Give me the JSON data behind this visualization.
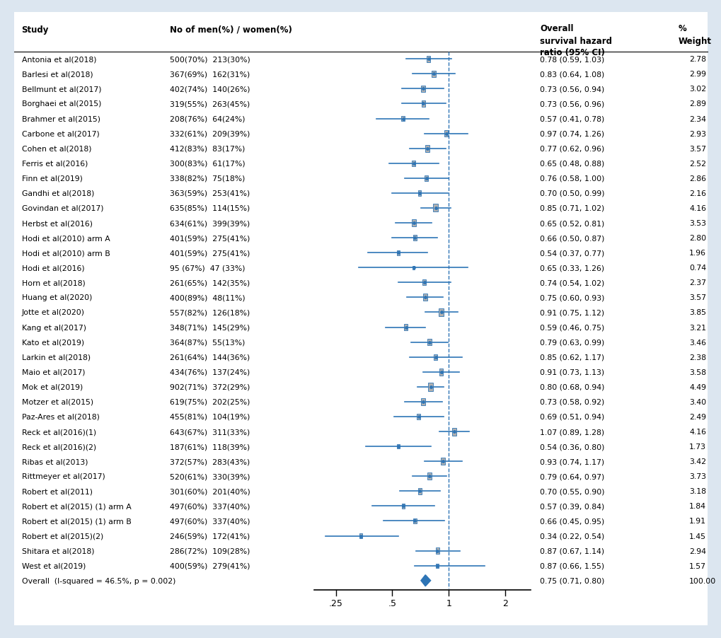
{
  "studies": [
    {
      "name": "Antonia et al(2018)",
      "men": "500(70%)",
      "women": "213(30%)",
      "hr": 0.78,
      "lo": 0.59,
      "hi": 1.03,
      "weight": 2.78
    },
    {
      "name": "Barlesi et al(2018)",
      "men": "367(69%)",
      "women": "162(31%)",
      "hr": 0.83,
      "lo": 0.64,
      "hi": 1.08,
      "weight": 2.99
    },
    {
      "name": "Bellmunt et al(2017)",
      "men": "402(74%)",
      "women": "140(26%)",
      "hr": 0.73,
      "lo": 0.56,
      "hi": 0.94,
      "weight": 3.02
    },
    {
      "name": "Borghaei et al(2015)",
      "men": "319(55%)",
      "women": "263(45%)",
      "hr": 0.73,
      "lo": 0.56,
      "hi": 0.96,
      "weight": 2.89
    },
    {
      "name": "Brahmer et al(2015)",
      "men": "208(76%)",
      "women": "64(24%)",
      "hr": 0.57,
      "lo": 0.41,
      "hi": 0.78,
      "weight": 2.34
    },
    {
      "name": "Carbone et al(2017)",
      "men": "332(61%)",
      "women": "209(39%)",
      "hr": 0.97,
      "lo": 0.74,
      "hi": 1.26,
      "weight": 2.93
    },
    {
      "name": "Cohen et al(2018)",
      "men": "412(83%)",
      "women": "83(17%)",
      "hr": 0.77,
      "lo": 0.62,
      "hi": 0.96,
      "weight": 3.57
    },
    {
      "name": "Ferris et al(2016)",
      "men": "300(83%)",
      "women": "61(17%)",
      "hr": 0.65,
      "lo": 0.48,
      "hi": 0.88,
      "weight": 2.52
    },
    {
      "name": "Finn et al(2019)",
      "men": "338(82%)",
      "women": "75(18%)",
      "hr": 0.76,
      "lo": 0.58,
      "hi": 1.0,
      "weight": 2.86
    },
    {
      "name": "Gandhi et al(2018)",
      "men": "363(59%)",
      "women": "253(41%)",
      "hr": 0.7,
      "lo": 0.5,
      "hi": 0.99,
      "weight": 2.16
    },
    {
      "name": "Govindan et al(2017)",
      "men": "635(85%)",
      "women": "114(15%)",
      "hr": 0.85,
      "lo": 0.71,
      "hi": 1.02,
      "weight": 4.16
    },
    {
      "name": "Herbst et al(2016)",
      "men": "634(61%)",
      "women": "399(39%)",
      "hr": 0.65,
      "lo": 0.52,
      "hi": 0.81,
      "weight": 3.53
    },
    {
      "name": "Hodi et al(2010) arm A",
      "men": "401(59%)",
      "women": "275(41%)",
      "hr": 0.66,
      "lo": 0.5,
      "hi": 0.87,
      "weight": 2.8
    },
    {
      "name": "Hodi et al(2010) arm B",
      "men": "401(59%)",
      "women": "275(41%)",
      "hr": 0.54,
      "lo": 0.37,
      "hi": 0.77,
      "weight": 1.96
    },
    {
      "name": "Hodi et al(2016)",
      "men": "95 (67%)",
      "women": "47 (33%)",
      "hr": 0.65,
      "lo": 0.33,
      "hi": 1.26,
      "weight": 0.74
    },
    {
      "name": "Horn et al(2018)",
      "men": "261(65%)",
      "women": "142(35%)",
      "hr": 0.74,
      "lo": 0.54,
      "hi": 1.02,
      "weight": 2.37
    },
    {
      "name": "Huang et al(2020)",
      "men": "400(89%)",
      "women": "48(11%)",
      "hr": 0.75,
      "lo": 0.6,
      "hi": 0.93,
      "weight": 3.57
    },
    {
      "name": "Jotte et al(2020)",
      "men": "557(82%)",
      "women": "126(18%)",
      "hr": 0.91,
      "lo": 0.75,
      "hi": 1.12,
      "weight": 3.85
    },
    {
      "name": "Kang et al(2017)",
      "men": "348(71%)",
      "women": "145(29%)",
      "hr": 0.59,
      "lo": 0.46,
      "hi": 0.75,
      "weight": 3.21
    },
    {
      "name": "Kato et al(2019)",
      "men": "364(87%)",
      "women": "55(13%)",
      "hr": 0.79,
      "lo": 0.63,
      "hi": 0.99,
      "weight": 3.46
    },
    {
      "name": "Larkin et al(2018)",
      "men": "261(64%)",
      "women": "144(36%)",
      "hr": 0.85,
      "lo": 0.62,
      "hi": 1.17,
      "weight": 2.38
    },
    {
      "name": "Maio et al(2017)",
      "men": "434(76%)",
      "women": "137(24%)",
      "hr": 0.91,
      "lo": 0.73,
      "hi": 1.13,
      "weight": 3.58
    },
    {
      "name": "Mok et al(2019)",
      "men": "902(71%)",
      "women": "372(29%)",
      "hr": 0.8,
      "lo": 0.68,
      "hi": 0.94,
      "weight": 4.49
    },
    {
      "name": "Motzer et al(2015)",
      "men": "619(75%)",
      "women": "202(25%)",
      "hr": 0.73,
      "lo": 0.58,
      "hi": 0.92,
      "weight": 3.4
    },
    {
      "name": "Paz-Ares et al(2018)",
      "men": "455(81%)",
      "women": "104(19%)",
      "hr": 0.69,
      "lo": 0.51,
      "hi": 0.94,
      "weight": 2.49
    },
    {
      "name": "Reck et al(2016)(1)",
      "men": "643(67%)",
      "women": "311(33%)",
      "hr": 1.07,
      "lo": 0.89,
      "hi": 1.28,
      "weight": 4.16
    },
    {
      "name": "Reck et al(2016)(2)",
      "men": "187(61%)",
      "women": "118(39%)",
      "hr": 0.54,
      "lo": 0.36,
      "hi": 0.8,
      "weight": 1.73
    },
    {
      "name": "Ribas et al(2013)",
      "men": "372(57%)",
      "women": "283(43%)",
      "hr": 0.93,
      "lo": 0.74,
      "hi": 1.17,
      "weight": 3.42
    },
    {
      "name": "Rittmeyer et al(2017)",
      "men": "520(61%)",
      "women": "330(39%)",
      "hr": 0.79,
      "lo": 0.64,
      "hi": 0.97,
      "weight": 3.73
    },
    {
      "name": "Robert et al(2011)",
      "men": "301(60%)",
      "women": "201(40%)",
      "hr": 0.7,
      "lo": 0.55,
      "hi": 0.9,
      "weight": 3.18
    },
    {
      "name": "Robert et al(2015) (1) arm A",
      "men": "497(60%)",
      "women": "337(40%)",
      "hr": 0.57,
      "lo": 0.39,
      "hi": 0.84,
      "weight": 1.84
    },
    {
      "name": "Robert et al(2015) (1) arm B",
      "men": "497(60%)",
      "women": "337(40%)",
      "hr": 0.66,
      "lo": 0.45,
      "hi": 0.95,
      "weight": 1.91
    },
    {
      "name": "Robert et al(2015)(2)",
      "men": "246(59%)",
      "women": "172(41%)",
      "hr": 0.34,
      "lo": 0.22,
      "hi": 0.54,
      "weight": 1.45
    },
    {
      "name": "Shitara et al(2018)",
      "men": "286(72%)",
      "women": "109(28%)",
      "hr": 0.87,
      "lo": 0.67,
      "hi": 1.14,
      "weight": 2.94
    },
    {
      "name": "West et al(2019)",
      "men": "400(59%)",
      "women": "279(41%)",
      "hr": 0.87,
      "lo": 0.66,
      "hi": 1.55,
      "weight": 1.57
    }
  ],
  "overall": {
    "hr": 0.75,
    "lo": 0.71,
    "hi": 0.8,
    "label": "Overall  (I-squared = 46.5%, p = 0.002)"
  },
  "bg_color": "#dce6f0",
  "panel_color": "#ffffff",
  "line_color": "#2e75b6",
  "box_color": "#b0b0b0",
  "diamond_color": "#2e75b6",
  "dashed_line_color": "#2e75b6",
  "header_study": "Study",
  "header_nmen": "No of men(%) / women(%)",
  "header_ci_line1": "Overall",
  "header_ci_line2": "survival hazard",
  "header_ci_line3": "ratio (95% CI)",
  "header_weight_line1": "%",
  "header_weight_line2": "Weight"
}
